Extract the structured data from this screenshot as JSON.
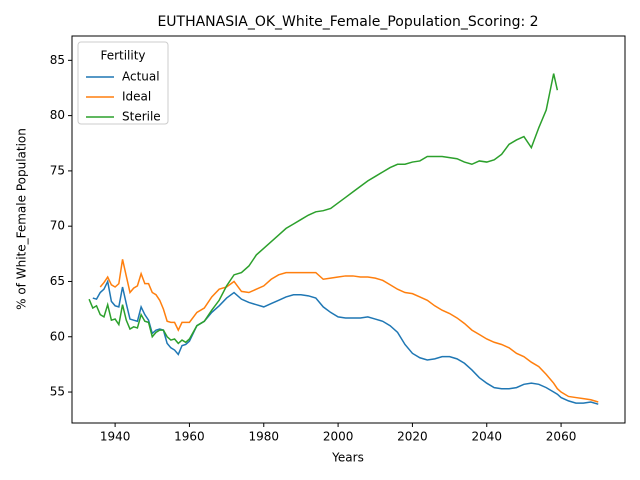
{
  "chart_data": {
    "type": "line",
    "title": "EUTHANASIA_OK_White_Female_Population_Scoring: 2",
    "x_label": "Years",
    "y_label": "% of White_Female Population",
    "legend_title": "Fertility",
    "legend": "upper left",
    "xlim": [
      1928.4,
      2077.2
    ],
    "xticks": [
      1940,
      1960,
      1980,
      2000,
      2020,
      2040,
      2060
    ],
    "ylim": [
      52.2,
      87.2
    ],
    "yticks": [
      55,
      60,
      65,
      70,
      75,
      80,
      85
    ],
    "x": [
      1933,
      1934,
      1935,
      1936,
      1937,
      1938,
      1939,
      1940,
      1941,
      1942,
      1943,
      1944,
      1945,
      1946,
      1947,
      1948,
      1949,
      1950,
      1951,
      1952,
      1953,
      1954,
      1955,
      1956,
      1957,
      1958,
      1959,
      1960,
      1962,
      1964,
      1966,
      1968,
      1970,
      1972,
      1974,
      1976,
      1978,
      1980,
      1982,
      1984,
      1986,
      1988,
      1990,
      1992,
      1994,
      1996,
      1998,
      2000,
      2002,
      2004,
      2006,
      2008,
      2010,
      2012,
      2014,
      2016,
      2018,
      2020,
      2022,
      2024,
      2026,
      2028,
      2030,
      2032,
      2034,
      2036,
      2038,
      2040,
      2042,
      2044,
      2046,
      2048,
      2050,
      2052,
      2054,
      2056,
      2058,
      2059,
      2060,
      2062,
      2064,
      2066,
      2068,
      2070
    ],
    "series": [
      {
        "name": "Actual",
        "color": "#1f77b4",
        "values": [
          null,
          63.5,
          63.4,
          64.0,
          64.3,
          65.0,
          63.2,
          62.8,
          62.7,
          64.5,
          63.0,
          61.6,
          61.5,
          61.4,
          62.7,
          62.0,
          61.5,
          60.3,
          60.6,
          60.7,
          60.6,
          59.4,
          59.0,
          58.8,
          58.4,
          59.2,
          59.3,
          59.6,
          61.0,
          61.4,
          62.2,
          62.8,
          63.5,
          64.0,
          63.4,
          63.1,
          62.9,
          62.7,
          63.0,
          63.3,
          63.6,
          63.8,
          63.8,
          63.7,
          63.5,
          62.7,
          62.2,
          61.8,
          61.7,
          61.7,
          61.7,
          61.8,
          61.6,
          61.4,
          61.0,
          60.4,
          59.3,
          58.5,
          58.1,
          57.9,
          58.0,
          58.2,
          58.2,
          58.0,
          57.6,
          57.0,
          56.3,
          55.8,
          55.4,
          55.3,
          55.3,
          55.4,
          55.7,
          55.8,
          55.7,
          55.4,
          55.0,
          54.8,
          54.5,
          54.2,
          54.0,
          54.0,
          54.1,
          53.9
        ]
      },
      {
        "name": "Ideal",
        "color": "#ff7f0e",
        "values": [
          null,
          null,
          null,
          64.5,
          64.9,
          65.4,
          64.7,
          64.5,
          64.8,
          67.0,
          65.5,
          64.0,
          64.4,
          64.6,
          65.7,
          64.8,
          64.8,
          64.0,
          63.8,
          63.3,
          62.5,
          61.4,
          61.3,
          61.3,
          60.6,
          61.3,
          61.3,
          61.3,
          62.2,
          62.6,
          63.6,
          64.3,
          64.5,
          65.0,
          64.1,
          64.0,
          64.3,
          64.6,
          65.2,
          65.6,
          65.8,
          65.8,
          65.8,
          65.8,
          65.8,
          65.2,
          65.3,
          65.4,
          65.5,
          65.5,
          65.4,
          65.4,
          65.3,
          65.1,
          64.7,
          64.3,
          64.0,
          63.9,
          63.6,
          63.3,
          62.8,
          62.4,
          62.1,
          61.7,
          61.2,
          60.6,
          60.2,
          59.8,
          59.5,
          59.3,
          59.0,
          58.5,
          58.2,
          57.7,
          57.3,
          56.6,
          55.8,
          55.3,
          55.0,
          54.6,
          54.5,
          54.4,
          54.3,
          54.1
        ]
      },
      {
        "name": "Sterile",
        "color": "#2ca02c",
        "values": [
          63.4,
          62.6,
          62.8,
          62.0,
          61.8,
          62.9,
          61.5,
          61.6,
          61.1,
          62.9,
          61.5,
          60.7,
          60.9,
          60.8,
          62.0,
          61.4,
          61.3,
          60.0,
          60.4,
          60.6,
          60.6,
          60.0,
          59.7,
          59.8,
          59.4,
          59.7,
          59.5,
          59.8,
          61.0,
          61.4,
          62.4,
          63.3,
          64.6,
          65.6,
          65.8,
          66.4,
          67.4,
          68.0,
          68.6,
          69.2,
          69.8,
          70.2,
          70.6,
          71.0,
          71.3,
          71.4,
          71.6,
          72.1,
          72.6,
          73.1,
          73.6,
          74.1,
          74.5,
          74.9,
          75.3,
          75.6,
          75.6,
          75.8,
          75.9,
          76.3,
          76.3,
          76.3,
          76.2,
          76.1,
          75.8,
          75.6,
          75.9,
          75.8,
          76.0,
          76.5,
          77.4,
          77.8,
          78.1,
          77.1,
          78.9,
          80.5,
          83.8,
          82.3,
          null,
          null,
          null,
          null,
          null,
          null
        ]
      }
    ]
  }
}
